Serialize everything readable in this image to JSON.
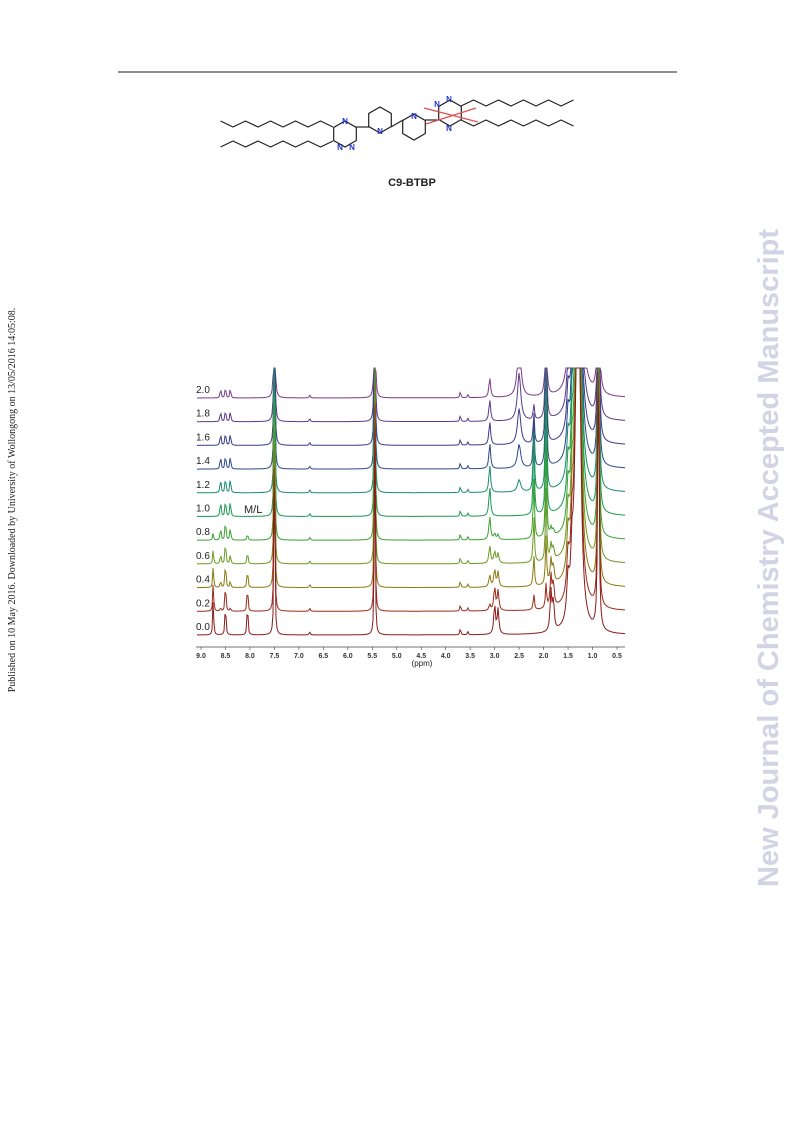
{
  "side_note": "Published on 10 May 2016. Downloaded by University of Wollongong on 13/05/2016 14:05:08.",
  "watermark": "New Journal of Chemistry Accepted Manuscript",
  "molecule": {
    "label": "C9-BTBP",
    "atoms": [
      "N",
      "N",
      "N",
      "N",
      "N",
      "N",
      "N",
      "N"
    ]
  },
  "figure": {
    "ratio_labels": [
      "2.0",
      "1.8",
      "1.6",
      "1.4",
      "1.2",
      "1.0",
      "0.8",
      "0.6",
      "0.4",
      "0.2",
      "0.0"
    ],
    "annotation": "M/L",
    "x_ticks": [
      "9.0",
      "8.5",
      "8.0",
      "7.5",
      "7.0",
      "6.5",
      "6.0",
      "5.5",
      "5.0",
      "4.5",
      "4.0",
      "3.5",
      "3.0",
      "2.5",
      "2.0",
      "1.5",
      "1.0",
      "0.5"
    ],
    "x_title": "(ppm)"
  }
}
